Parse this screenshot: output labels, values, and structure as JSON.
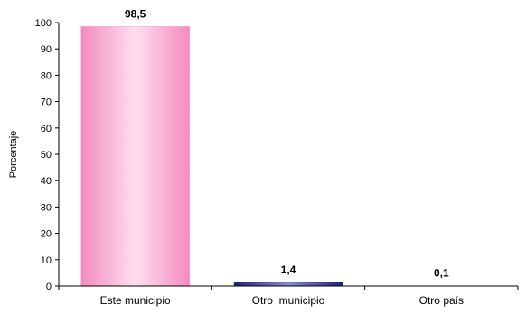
{
  "chart_data": {
    "type": "bar",
    "title": "",
    "xlabel": "",
    "ylabel": "Porcentaje",
    "categories": [
      "Este municipio",
      "Otro  municipio",
      "Otro país"
    ],
    "values": [
      98.5,
      1.4,
      0.1
    ],
    "value_labels": [
      "98,5",
      "1,4",
      "0,1"
    ],
    "ylim": [
      0,
      100
    ],
    "yticks": [
      0,
      10,
      20,
      30,
      40,
      50,
      60,
      70,
      80,
      90,
      100
    ],
    "grid": false,
    "legend": "none",
    "colors": [
      "#f7a1cc",
      "#2e2e8c",
      "#8c8cc8"
    ]
  }
}
